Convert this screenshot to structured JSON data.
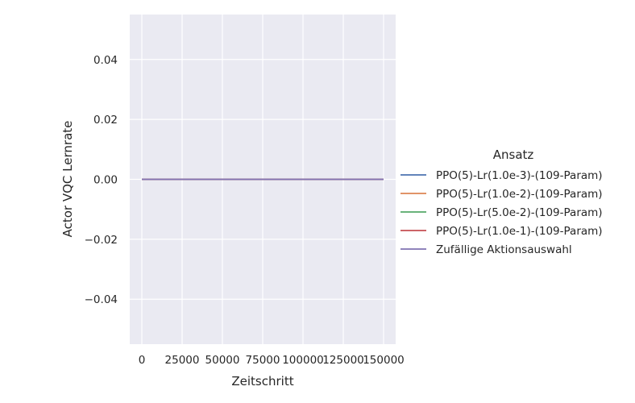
{
  "chart_data": {
    "type": "line",
    "title": "",
    "xlabel": "Zeitschritt",
    "ylabel": "Actor VQC Lernrate",
    "xlim": [
      -7500,
      157500
    ],
    "ylim": [
      -0.055,
      0.055
    ],
    "x_ticks": [
      0,
      25000,
      50000,
      75000,
      100000,
      125000,
      150000
    ],
    "x_tick_labels": [
      "0",
      "25000",
      "50000",
      "75000",
      "100000",
      "125000",
      "150000"
    ],
    "y_ticks": [
      -0.04,
      -0.02,
      0.0,
      0.02,
      0.04
    ],
    "y_tick_labels": [
      "−0.04",
      "−0.02",
      "0.00",
      "0.02",
      "0.04"
    ],
    "grid": true,
    "background": "#eaeaf2",
    "legend": {
      "title": "Ansatz",
      "placement": "right"
    },
    "series": [
      {
        "name": "PPO(5)-Lr(1.0e-3)-(109-Param)",
        "color": "#4c72b0",
        "x": [
          0,
          150000
        ],
        "y": [
          0.0,
          0.0
        ]
      },
      {
        "name": "PPO(5)-Lr(1.0e-2)-(109-Param)",
        "color": "#dd8452",
        "x": [
          0,
          150000
        ],
        "y": [
          0.0,
          0.0
        ]
      },
      {
        "name": "PPO(5)-Lr(5.0e-2)-(109-Param)",
        "color": "#55a868",
        "x": [
          0,
          150000
        ],
        "y": [
          0.0,
          0.0
        ]
      },
      {
        "name": "PPO(5)-Lr(1.0e-1)-(109-Param)",
        "color": "#c44e52",
        "x": [
          0,
          150000
        ],
        "y": [
          0.0,
          0.0
        ]
      },
      {
        "name": "Zufällige Aktionsauswahl",
        "color": "#8172b3",
        "x": [
          0,
          150000
        ],
        "y": [
          0.0,
          0.0
        ]
      }
    ]
  }
}
